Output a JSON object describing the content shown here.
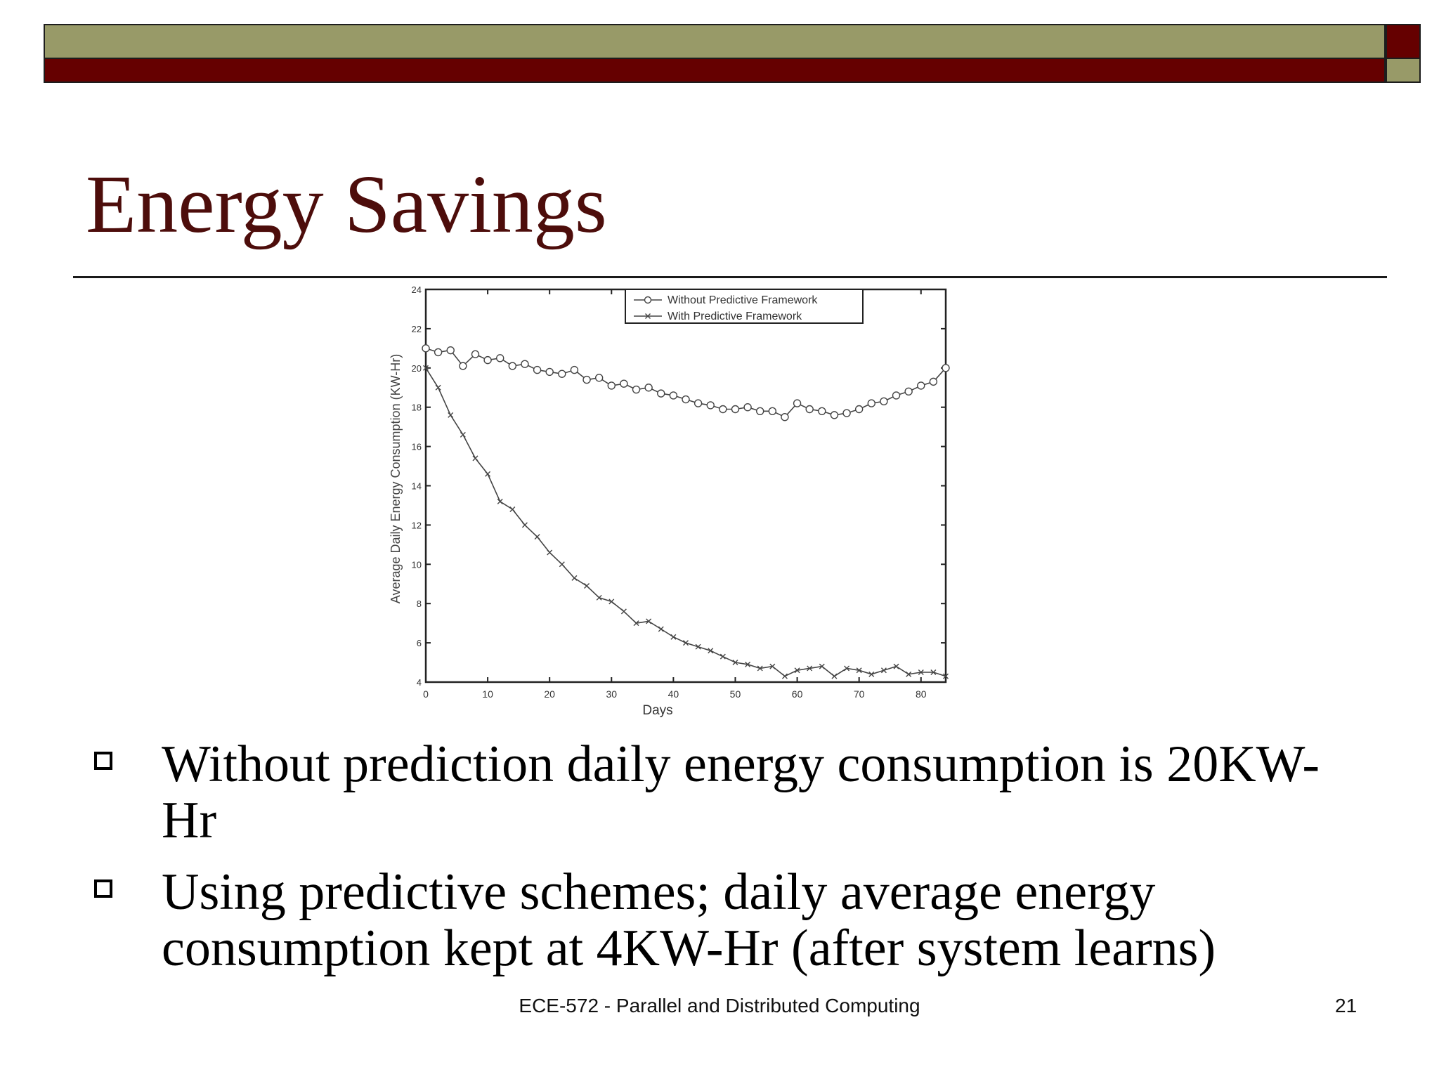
{
  "slide": {
    "title": "Energy Savings",
    "footer": "ECE-572 - Parallel and Distributed Computing",
    "page_number": "21",
    "colors": {
      "olive": "#989a68",
      "maroon": "#650000",
      "title": "#4d0d0b"
    }
  },
  "bullets": [
    {
      "text": "Without prediction daily energy consumption is 20KW-Hr"
    },
    {
      "text": "Using predictive schemes; daily average energy consumption kept at 4KW-Hr (after system learns)"
    }
  ],
  "chart_data": {
    "type": "line",
    "xlabel": "Days",
    "ylabel": "Average Daily Energy Consumption (KW-Hr)",
    "xlim": [
      0,
      84
    ],
    "ylim": [
      4,
      24
    ],
    "xticks": [
      0,
      10,
      20,
      30,
      40,
      50,
      60,
      70,
      80
    ],
    "yticks": [
      4,
      6,
      8,
      10,
      12,
      14,
      16,
      18,
      20,
      22,
      24
    ],
    "legend_position": "top-right",
    "series": [
      {
        "name": "Without Predictive Framework",
        "marker": "circle",
        "x": [
          0,
          2,
          4,
          6,
          8,
          10,
          12,
          14,
          16,
          18,
          20,
          22,
          24,
          26,
          28,
          30,
          32,
          34,
          36,
          38,
          40,
          42,
          44,
          46,
          48,
          50,
          52,
          54,
          56,
          58,
          60,
          62,
          64,
          66,
          68,
          70,
          72,
          74,
          76,
          78,
          80,
          82,
          84
        ],
        "y": [
          21.0,
          20.8,
          20.9,
          20.1,
          20.7,
          20.4,
          20.5,
          20.1,
          20.2,
          19.9,
          19.8,
          19.7,
          19.9,
          19.4,
          19.5,
          19.1,
          19.2,
          18.9,
          19.0,
          18.7,
          18.6,
          18.4,
          18.2,
          18.1,
          17.9,
          17.9,
          18.0,
          17.8,
          17.8,
          17.5,
          18.2,
          17.9,
          17.8,
          17.6,
          17.7,
          17.9,
          18.2,
          18.3,
          18.6,
          18.8,
          19.1,
          19.3,
          20.0
        ]
      },
      {
        "name": "With Predictive Framework",
        "marker": "x",
        "x": [
          0,
          2,
          4,
          6,
          8,
          10,
          12,
          14,
          16,
          18,
          20,
          22,
          24,
          26,
          28,
          30,
          32,
          34,
          36,
          38,
          40,
          42,
          44,
          46,
          48,
          50,
          52,
          54,
          56,
          58,
          60,
          62,
          64,
          66,
          68,
          70,
          72,
          74,
          76,
          78,
          80,
          82,
          84
        ],
        "y": [
          20.0,
          19.0,
          17.6,
          16.6,
          15.4,
          14.6,
          13.2,
          12.8,
          12.0,
          11.4,
          10.6,
          10.0,
          9.3,
          8.9,
          8.3,
          8.1,
          7.6,
          7.0,
          7.1,
          6.7,
          6.3,
          6.0,
          5.8,
          5.6,
          5.3,
          5.0,
          4.9,
          4.7,
          4.8,
          4.3,
          4.6,
          4.7,
          4.8,
          4.3,
          4.7,
          4.6,
          4.4,
          4.6,
          4.8,
          4.4,
          4.5,
          4.5,
          4.3
        ]
      }
    ]
  }
}
